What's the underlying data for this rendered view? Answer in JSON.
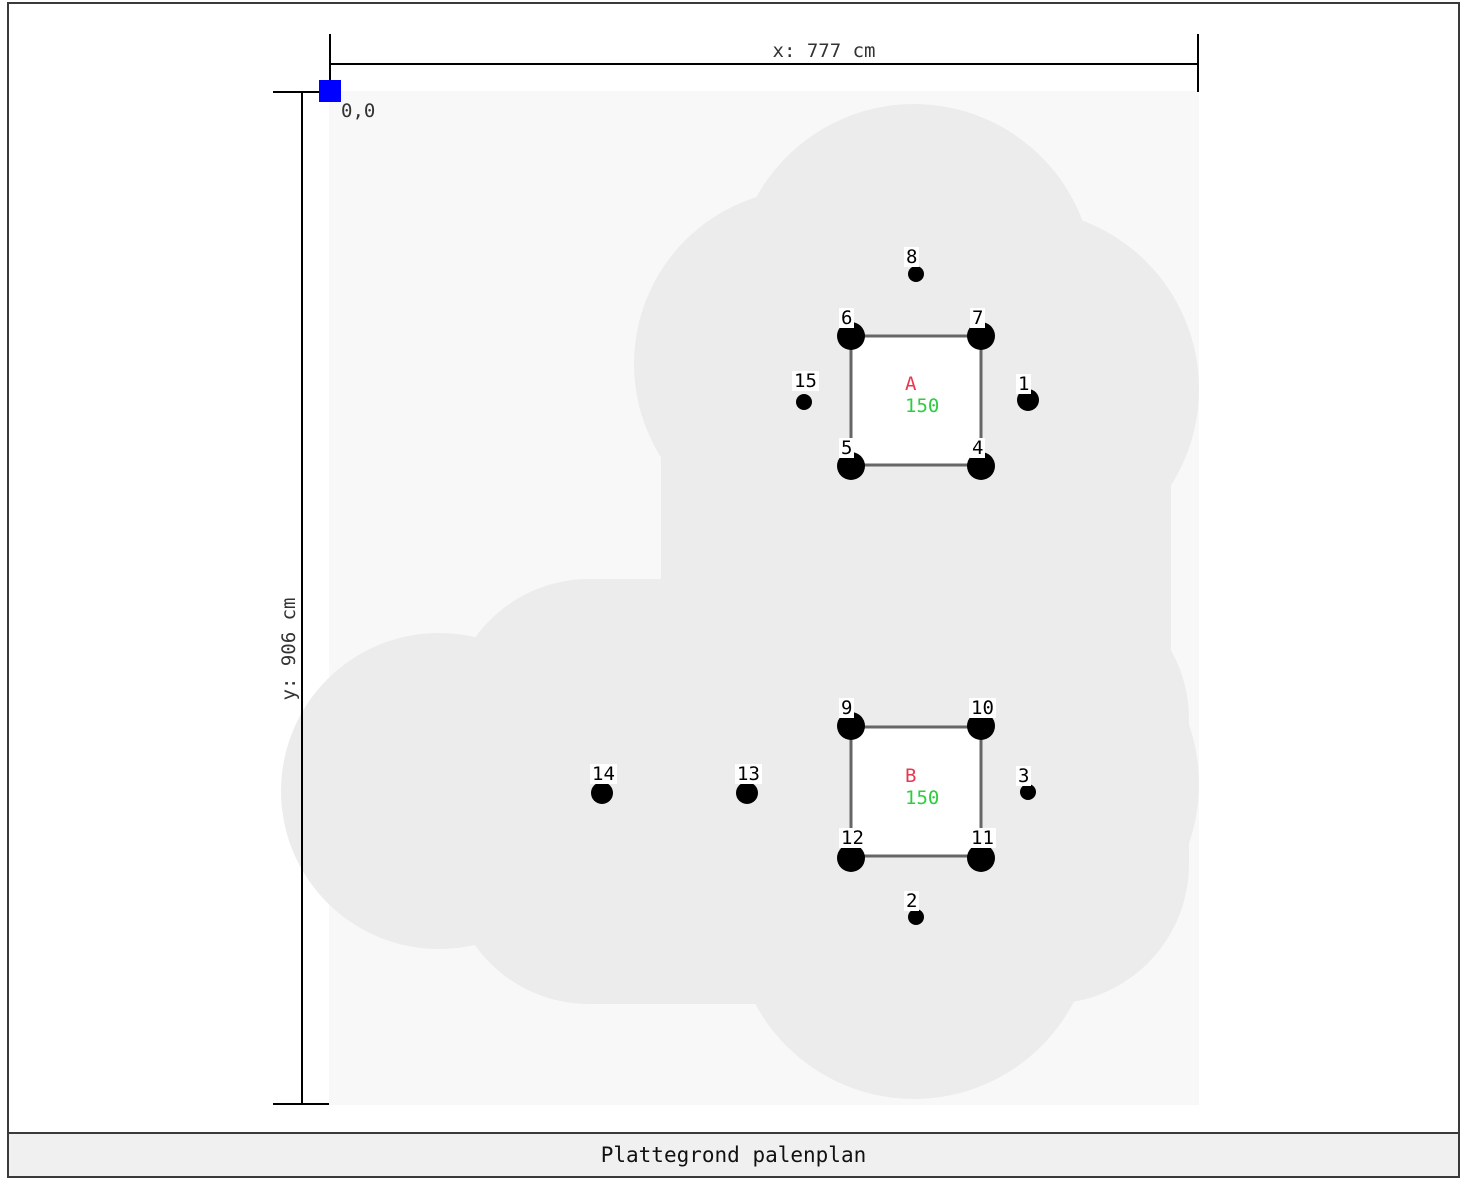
{
  "drawing": {
    "x_dim_label": "x: 777 cm",
    "y_dim_label": "y: 906 cm",
    "origin_label": "0,0",
    "plot_width_cm": 777,
    "plot_height_cm": 906
  },
  "caps": [
    {
      "label": "A",
      "value": "150"
    },
    {
      "label": "B",
      "value": "150"
    }
  ],
  "piles": [
    {
      "label": "1"
    },
    {
      "label": "2"
    },
    {
      "label": "3"
    },
    {
      "label": "4"
    },
    {
      "label": "5"
    },
    {
      "label": "6"
    },
    {
      "label": "7"
    },
    {
      "label": "8"
    },
    {
      "label": "9"
    },
    {
      "label": "10"
    },
    {
      "label": "11"
    },
    {
      "label": "12"
    },
    {
      "label": "13"
    },
    {
      "label": "14"
    },
    {
      "label": "15"
    }
  ],
  "colors": {
    "plot_bg": "#f8f8f8",
    "zone": "#ececec",
    "origin_marker": "#0000ff",
    "cap_label": "#e8384f",
    "cap_value": "#2ecc40",
    "pile": "#000000",
    "cap_outline": "#666666"
  },
  "footer": {
    "caption": "Plattegrond palenplan"
  }
}
